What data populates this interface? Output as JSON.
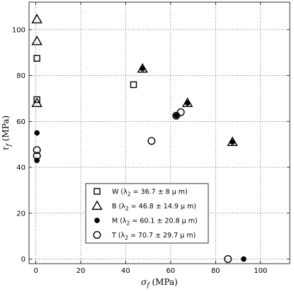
{
  "chart_data": {
    "type": "scatter",
    "xlabel": "σ_f (MPa)",
    "ylabel": "τ_f (MPa)",
    "xlim": [
      -3,
      113
    ],
    "ylim": [
      -2,
      112
    ],
    "xticks": [
      0,
      20,
      40,
      60,
      80,
      100
    ],
    "yticks": [
      0,
      20,
      40,
      60,
      80,
      100
    ],
    "grid": "dotted",
    "legend_position": "lower-center",
    "series": [
      {
        "name": "W (λ2 = 36.7 ± 8 μ m)",
        "name_main": "W (λ",
        "name_sub": "2",
        "name_rest": " = 36.7 ± 8 μ m)",
        "marker": "square",
        "points": [
          [
            0.5,
            87.5
          ],
          [
            0.5,
            69.5
          ],
          [
            43.5,
            76
          ]
        ]
      },
      {
        "name": "B (λ2 = 46.8 ± 14.9 μ m)",
        "name_main": "B (λ",
        "name_sub": "2",
        "name_rest": " = 46.8 ± 14.9 μ m)",
        "marker": "triangle",
        "points": [
          [
            0.5,
            104.5
          ],
          [
            0.5,
            95
          ],
          [
            0.5,
            68
          ],
          [
            47.5,
            83
          ],
          [
            67.5,
            68
          ],
          [
            87.5,
            51
          ]
        ]
      },
      {
        "name": "M (λ2 = 60.1 ± 20.8 μ m)",
        "name_main": "M (λ",
        "name_sub": "2",
        "name_rest": " = 60.1 ± 20.8 μ m)",
        "marker": "dot",
        "points": [
          [
            0.5,
            55
          ],
          [
            0.5,
            43
          ],
          [
            47.5,
            83
          ],
          [
            62.5,
            62.5
          ],
          [
            67.5,
            68
          ],
          [
            87.5,
            51
          ],
          [
            92.5,
            0
          ]
        ]
      },
      {
        "name": "T (λ2 = 70.7 ± 29.7 μ m)",
        "name_main": "T (λ",
        "name_sub": "2",
        "name_rest": " = 70.7 ± 29.7 μ m)",
        "marker": "circle",
        "points": [
          [
            0.5,
            47.5
          ],
          [
            0.5,
            45
          ],
          [
            51.5,
            51.5
          ],
          [
            62.5,
            62.5
          ],
          [
            64.5,
            64
          ],
          [
            85.5,
            0
          ]
        ]
      }
    ]
  }
}
